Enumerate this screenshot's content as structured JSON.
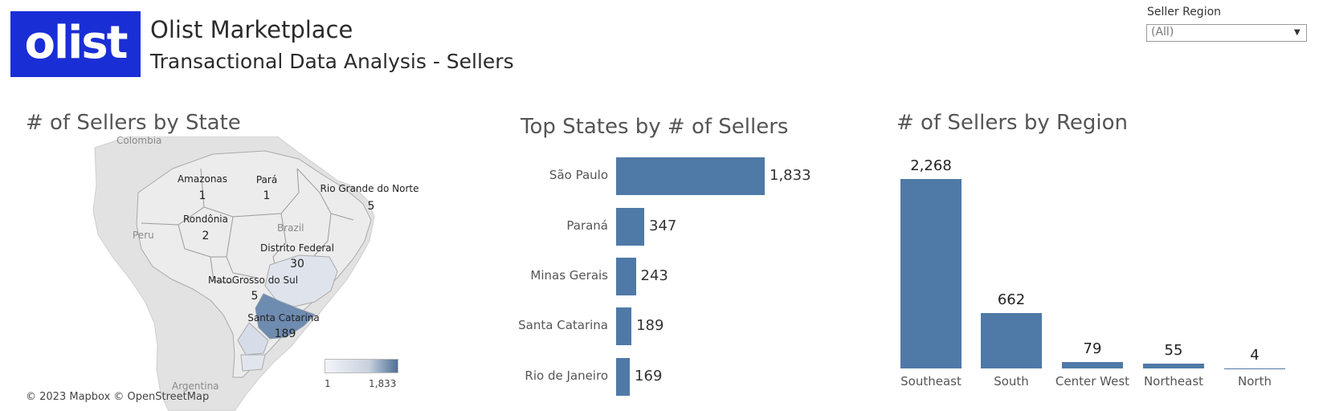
{
  "header": {
    "logo_text": "olist",
    "title": "Olist Marketplace",
    "subtitle": "Transactional Data Analysis - Sellers"
  },
  "filter": {
    "label": "Seller Region",
    "value": "(All)"
  },
  "map": {
    "title": "# of Sellers by State",
    "credit": "© 2023 Mapbox  © OpenStreetMap",
    "background_labels": [
      "Colombia",
      "Peru",
      "Brazil",
      "Argentina"
    ],
    "state_labels": [
      {
        "name": "Amazonas",
        "value": "1"
      },
      {
        "name": "Pará",
        "value": "1"
      },
      {
        "name": "Rio Grande do Norte",
        "value": "5"
      },
      {
        "name": "Rondônia",
        "value": "2"
      },
      {
        "name": "Distrito Federal",
        "value": "30"
      },
      {
        "name": "MatoGrosso do Sul",
        "value": "5"
      },
      {
        "name": "Santa Catarina",
        "value": "189"
      }
    ],
    "legend": {
      "min": "1",
      "max": "1,833"
    },
    "colors": {
      "low": "#f3f5f8",
      "high": "#4f6f96"
    }
  },
  "chart_data": [
    {
      "type": "bar",
      "orientation": "horizontal",
      "title": "Top States  by # of Sellers",
      "categories": [
        "São Paulo",
        "Paraná",
        "Minas Gerais",
        "Santa Catarina",
        "Rio de Janeiro"
      ],
      "values": [
        1833,
        347,
        243,
        189,
        169
      ],
      "value_labels": [
        "1,833",
        "347",
        "243",
        "189",
        "169"
      ],
      "color": "#4f79a7"
    },
    {
      "type": "bar",
      "orientation": "vertical",
      "title": "# of Sellers by Region",
      "categories": [
        "Southeast",
        "South",
        "Center West",
        "Northeast",
        "North"
      ],
      "values": [
        2268,
        662,
        79,
        55,
        4
      ],
      "value_labels": [
        "2,268",
        "662",
        "79",
        "55",
        "4"
      ],
      "color": "#4f79a7"
    }
  ]
}
